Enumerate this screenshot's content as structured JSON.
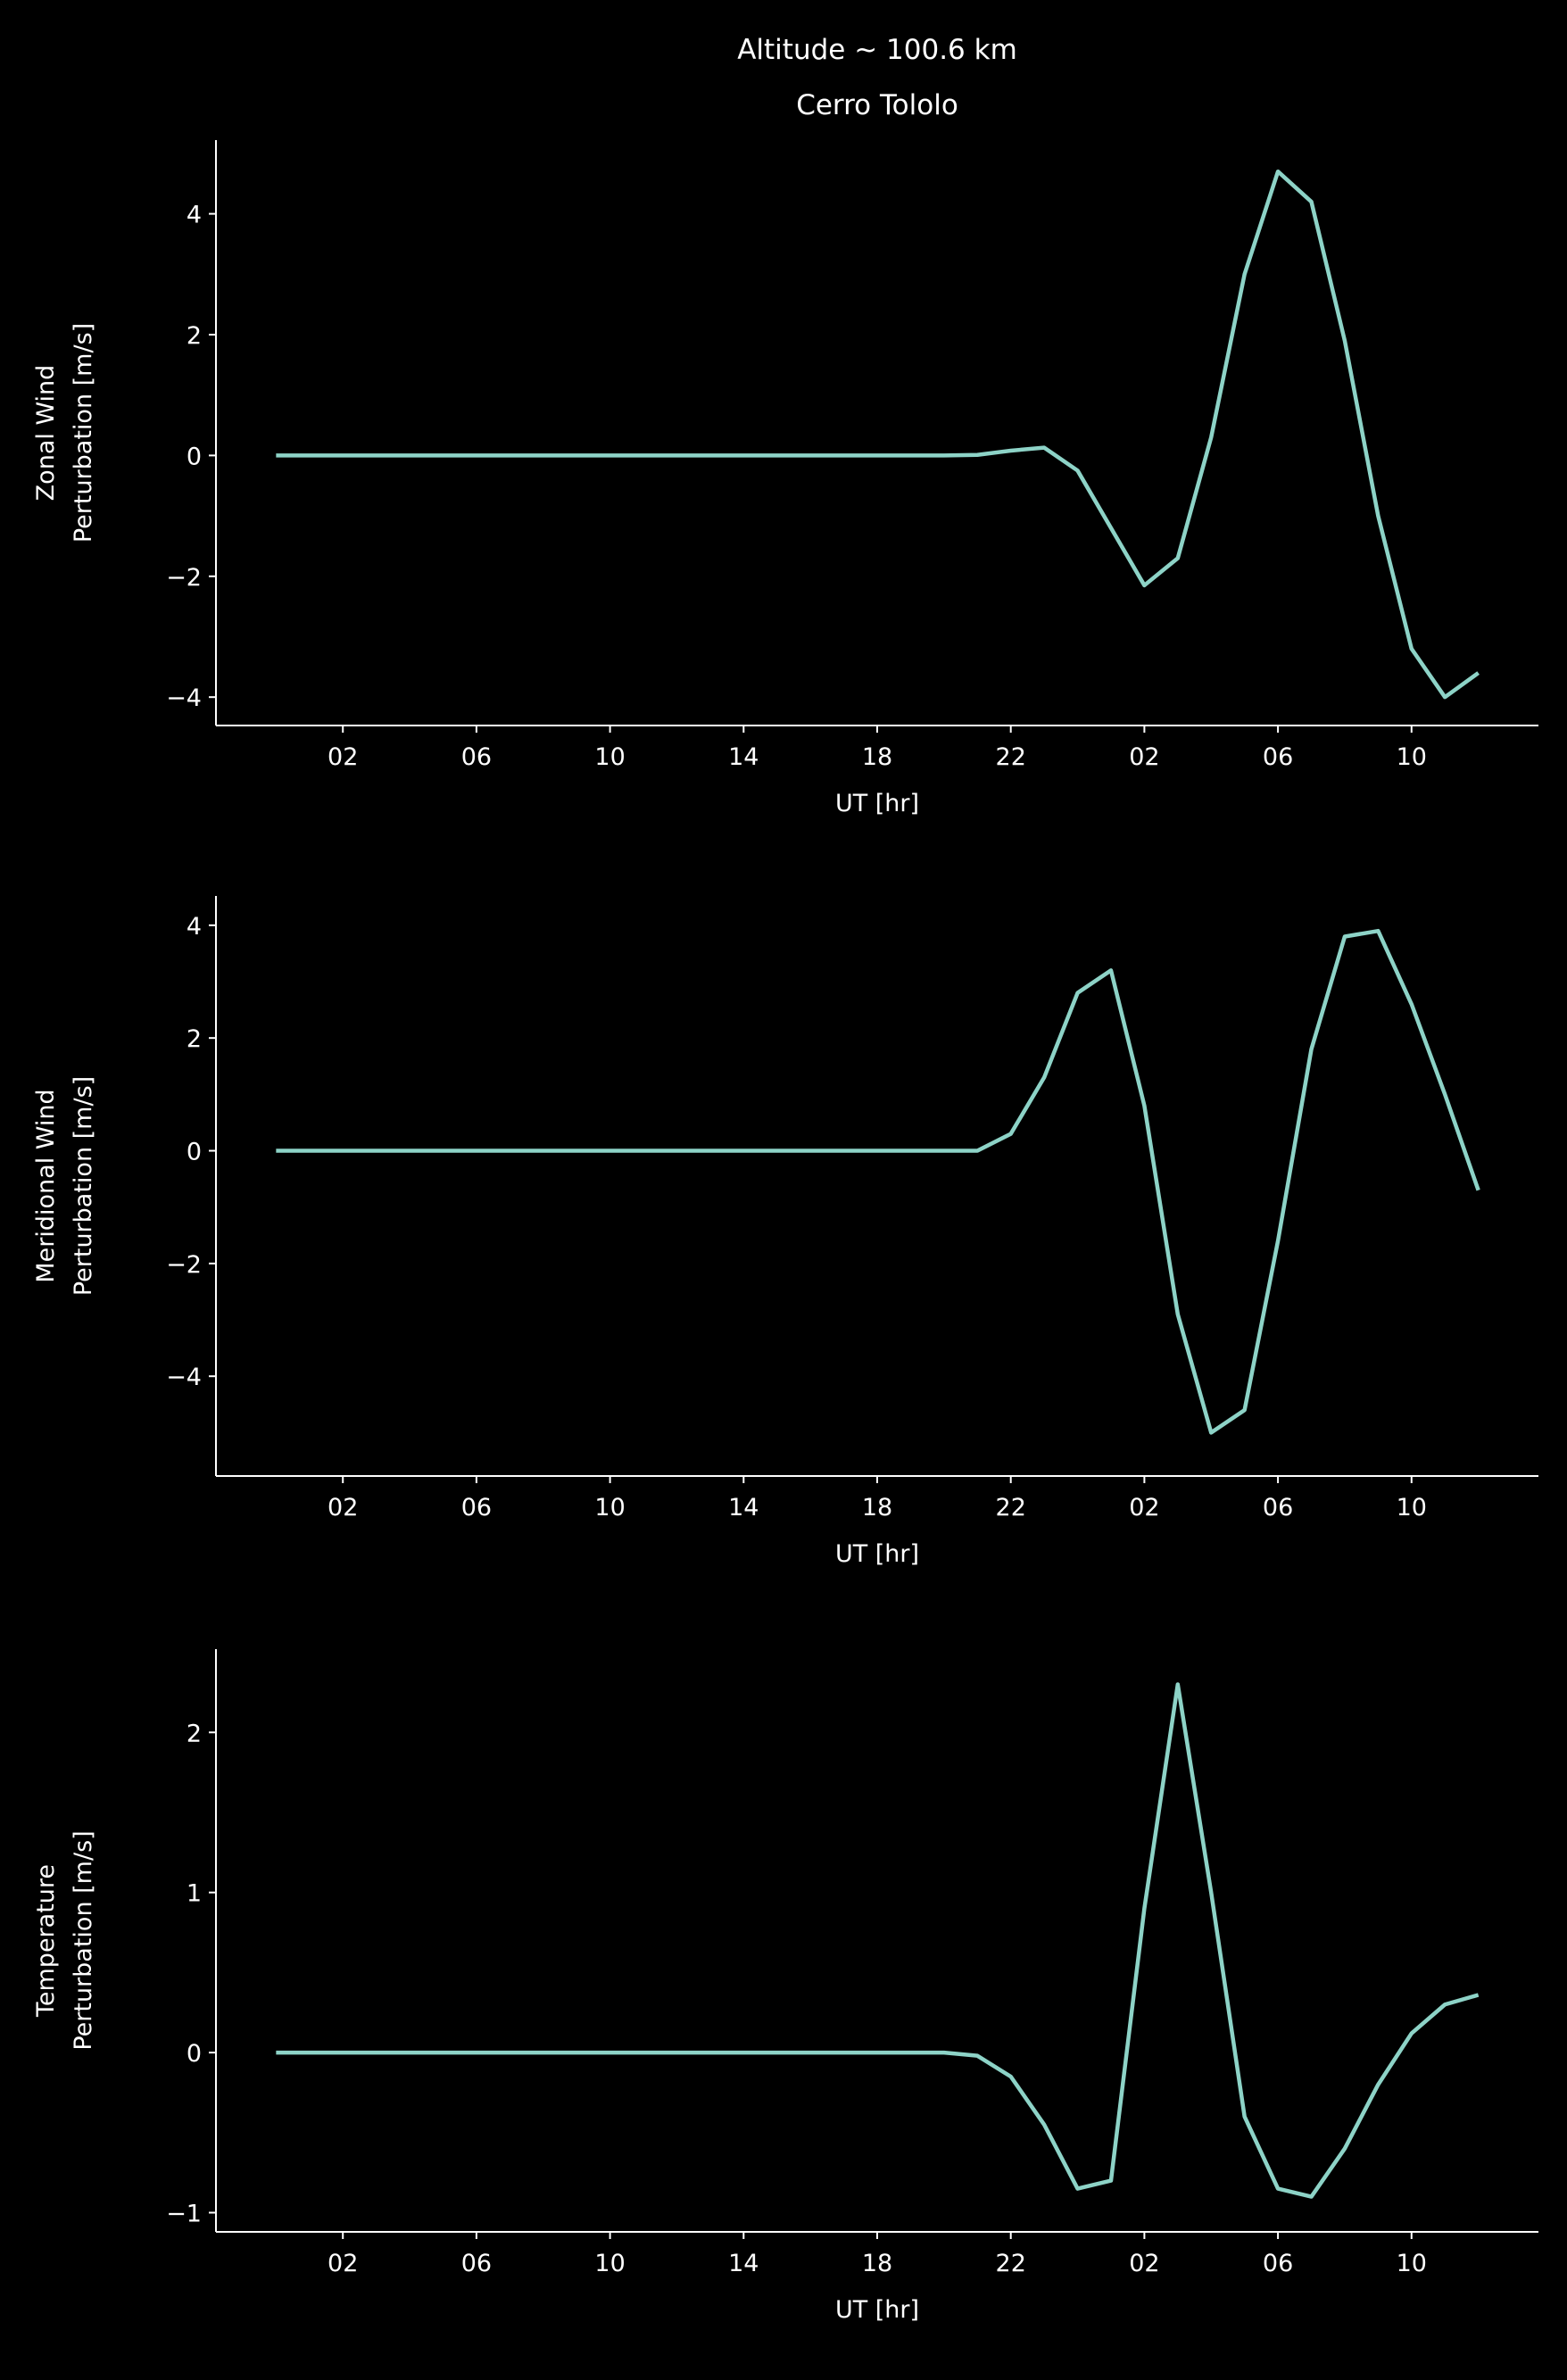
{
  "chart_data": [
    {
      "type": "line",
      "title": [
        "Altitude ~ 100.6 km",
        "Cerro Tololo"
      ],
      "ylabel": [
        "Zonal Wind",
        "Perturbation [m/s]"
      ],
      "xlabel": "UT [hr]",
      "x": [
        0,
        1,
        2,
        3,
        4,
        5,
        6,
        7,
        8,
        9,
        10,
        11,
        12,
        13,
        14,
        15,
        16,
        17,
        18,
        19,
        20,
        21,
        22,
        23,
        24,
        25,
        26,
        27,
        28,
        29,
        30,
        31,
        32,
        33,
        34,
        35,
        36
      ],
      "series": [
        {
          "color": "#8dd3c7",
          "values": [
            0,
            0,
            0,
            0,
            0,
            0,
            0,
            0,
            0,
            0,
            0,
            0,
            0,
            0,
            0,
            0,
            0,
            0,
            0,
            0,
            0,
            0.01,
            0.08,
            0.13,
            -0.25,
            -1.2,
            -2.15,
            -1.7,
            0.3,
            3.0,
            4.7,
            4.2,
            1.9,
            -1.0,
            -3.2,
            -4.0,
            -3.6
          ]
        }
      ],
      "xlim": [
        -1.8,
        37.8
      ],
      "xticks": [
        {
          "value": 2,
          "label": "02"
        },
        {
          "value": 6,
          "label": "06"
        },
        10,
        14,
        18,
        22,
        {
          "value": 26,
          "label": "02"
        },
        {
          "value": 30,
          "label": "06"
        },
        {
          "value": 34,
          "label": "10"
        }
      ],
      "ylim": [
        -4.47,
        5.22
      ],
      "yticks": [
        {
          "value": -4,
          "label": "−4"
        },
        {
          "value": -2,
          "label": "−2"
        },
        0,
        2,
        4
      ]
    },
    {
      "type": "line",
      "ylabel": [
        "Meridional Wind",
        "Perturbation [m/s]"
      ],
      "xlabel": "UT [hr]",
      "x": [
        0,
        1,
        2,
        3,
        4,
        5,
        6,
        7,
        8,
        9,
        10,
        11,
        12,
        13,
        14,
        15,
        16,
        17,
        18,
        19,
        20,
        21,
        22,
        23,
        24,
        25,
        26,
        27,
        28,
        29,
        30,
        31,
        32,
        33,
        34,
        35,
        36
      ],
      "series": [
        {
          "color": "#8dd3c7",
          "values": [
            0,
            0,
            0,
            0,
            0,
            0,
            0,
            0,
            0,
            0,
            0,
            0,
            0,
            0,
            0,
            0,
            0,
            0,
            0,
            0,
            0,
            0,
            0.3,
            1.3,
            2.8,
            3.2,
            0.8,
            -2.9,
            -5.0,
            -4.6,
            -1.6,
            1.8,
            3.8,
            3.9,
            2.6,
            1.0,
            -0.7
          ]
        }
      ],
      "xlim": [
        -1.8,
        37.8
      ],
      "xticks": [
        {
          "value": 2,
          "label": "02"
        },
        {
          "value": 6,
          "label": "06"
        },
        10,
        14,
        18,
        22,
        {
          "value": 26,
          "label": "02"
        },
        {
          "value": 30,
          "label": "06"
        },
        {
          "value": 34,
          "label": "10"
        }
      ],
      "ylim": [
        -5.77,
        4.52
      ],
      "yticks": [
        {
          "value": -4,
          "label": "−4"
        },
        {
          "value": -2,
          "label": "−2"
        },
        0,
        2,
        4
      ]
    },
    {
      "type": "line",
      "ylabel": [
        "Temperature",
        "Perturbation [m/s]"
      ],
      "xlabel": "UT [hr]",
      "x": [
        0,
        1,
        2,
        3,
        4,
        5,
        6,
        7,
        8,
        9,
        10,
        11,
        12,
        13,
        14,
        15,
        16,
        17,
        18,
        19,
        20,
        21,
        22,
        23,
        24,
        25,
        26,
        27,
        28,
        29,
        30,
        31,
        32,
        33,
        34,
        35,
        36
      ],
      "series": [
        {
          "color": "#8dd3c7",
          "values": [
            0,
            0,
            0,
            0,
            0,
            0,
            0,
            0,
            0,
            0,
            0,
            0,
            0,
            0,
            0,
            0,
            0,
            0,
            0,
            0,
            0,
            -0.02,
            -0.15,
            -0.45,
            -0.85,
            -0.8,
            0.9,
            2.3,
            1.0,
            -0.4,
            -0.85,
            -0.9,
            -0.6,
            -0.2,
            0.12,
            0.3,
            0.36
          ]
        }
      ],
      "xlim": [
        -1.8,
        37.8
      ],
      "xticks": [
        {
          "value": 2,
          "label": "02"
        },
        {
          "value": 6,
          "label": "06"
        },
        10,
        14,
        18,
        22,
        {
          "value": 26,
          "label": "02"
        },
        {
          "value": 30,
          "label": "06"
        },
        {
          "value": 34,
          "label": "10"
        }
      ],
      "ylim": [
        -1.12,
        2.52
      ],
      "yticks": [
        {
          "value": -1,
          "label": "−1"
        },
        0,
        1,
        2
      ]
    }
  ]
}
